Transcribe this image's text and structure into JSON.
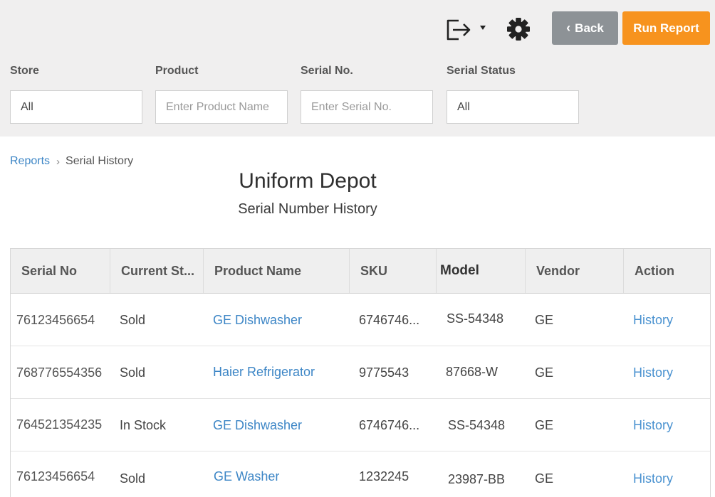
{
  "toolbar": {
    "exit_icon": "exit-icon",
    "dropdown_icon": "caret-down-icon",
    "settings_icon": "gear-icon",
    "back_chevron": "‹",
    "back_label": "Back",
    "run_report_label": "Run Report",
    "colors": {
      "back": "#8d9296",
      "run_report": "#f7931e",
      "background": "#f0efef"
    }
  },
  "filters": {
    "store": {
      "label": "Store",
      "value": "All"
    },
    "product": {
      "label": "Product",
      "placeholder": "Enter Product Name"
    },
    "serial_no": {
      "label": "Serial No.",
      "placeholder": "Enter Serial No."
    },
    "serial_status": {
      "label": "Serial Status",
      "value": "All"
    }
  },
  "breadcrumb": {
    "parent": "Reports",
    "separator": "›",
    "current": "Serial History"
  },
  "report": {
    "company": "Uniform Depot",
    "title": "Serial Number History"
  },
  "table": {
    "columns": [
      "Serial No",
      "Current St...",
      "Product Name",
      "SKU",
      "Model",
      "Vendor",
      "Action"
    ],
    "rows": [
      {
        "serial": "76123456654",
        "status": "Sold",
        "product": "GE Dishwasher",
        "sku": "6746746...",
        "model": "SS-54348",
        "vendor": "GE",
        "action": "History"
      },
      {
        "serial": "768776554356",
        "status": "Sold",
        "product": "Haier Refrigerator",
        "sku": "9775543",
        "model": "87668-W",
        "vendor": "GE",
        "action": "History"
      },
      {
        "serial": "764521354235",
        "status": "In Stock",
        "product": "GE Dishwasher",
        "sku": "6746746...",
        "model": "SS-54348",
        "vendor": "GE",
        "action": "History"
      },
      {
        "serial": "76123456654",
        "status": "Sold",
        "product": "GE Washer",
        "sku": "1232245",
        "model": "23987-BB",
        "vendor": "GE",
        "action": "History"
      }
    ],
    "colors": {
      "link": "#3d86c6",
      "header_bg": "#efefef"
    }
  }
}
